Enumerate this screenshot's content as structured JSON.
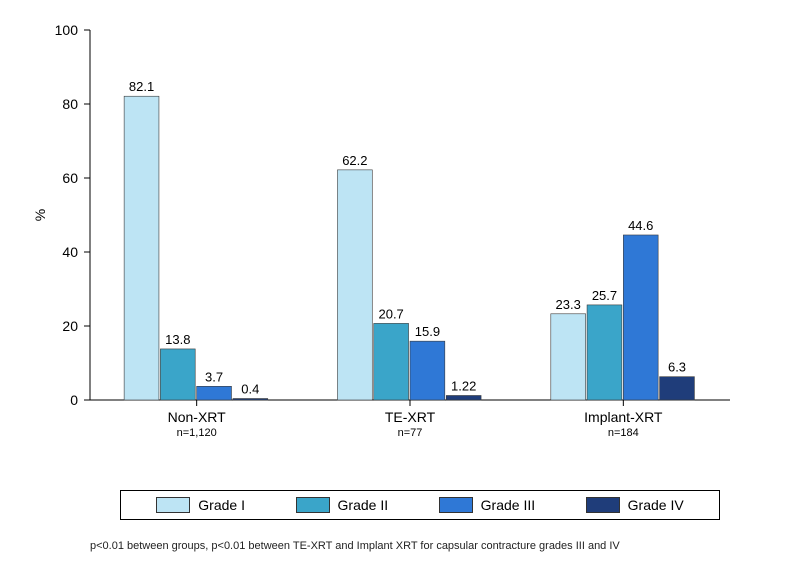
{
  "chart": {
    "type": "grouped-bar",
    "ylabel": "%",
    "ylim": [
      0,
      100
    ],
    "ytick_step": 20,
    "background_color": "#ffffff",
    "axis_color": "#000000",
    "bar_border_color": "#3a3a3a",
    "label_fontsize": 14,
    "value_fontsize": 13,
    "legend": [
      {
        "label": "Grade I",
        "color": "#bde4f4"
      },
      {
        "label": "Grade II",
        "color": "#3aa5c9"
      },
      {
        "label": "Grade III",
        "color": "#2f78d6"
      },
      {
        "label": "Grade IV",
        "color": "#1f3d7a"
      }
    ],
    "groups": [
      {
        "label": "Non-XRT",
        "sub": "n=1,120",
        "values": [
          82.1,
          13.8,
          3.7,
          0.4
        ]
      },
      {
        "label": "TE-XRT",
        "sub": "n=77",
        "values": [
          62.2,
          20.7,
          15.9,
          1.22
        ]
      },
      {
        "label": "Implant-XRT",
        "sub": "n=184",
        "values": [
          23.3,
          25.7,
          44.6,
          6.3
        ]
      }
    ],
    "footnote": "p<0.01 between groups, p<0.01 between TE-XRT and Implant XRT for capsular contracture grades III and IV"
  }
}
